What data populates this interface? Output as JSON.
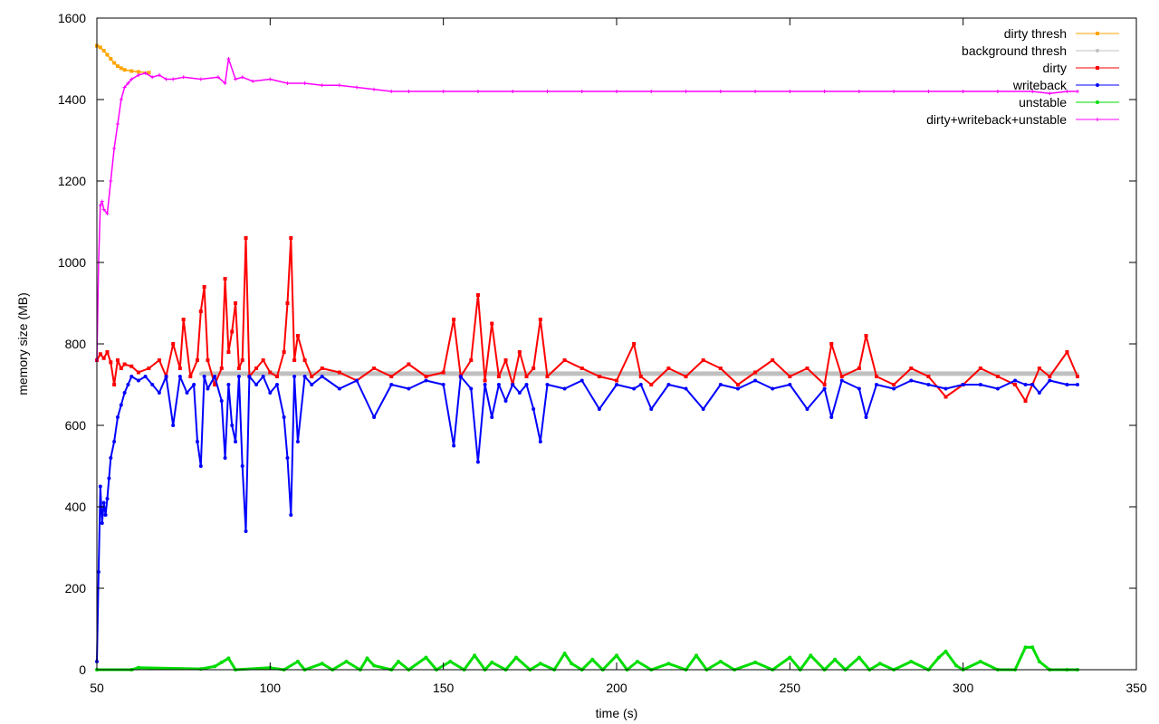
{
  "chart_data": {
    "type": "line",
    "title": "",
    "xlabel": "time (s)",
    "ylabel": "memory size (MB)",
    "xlim": [
      50,
      350
    ],
    "ylim": [
      0,
      1600
    ],
    "xticks": [
      "50",
      "100",
      "150",
      "200",
      "250",
      "300",
      "350"
    ],
    "yticks": [
      "0",
      "200",
      "400",
      "600",
      "800",
      "1000",
      "1200",
      "1400",
      "1600"
    ],
    "grid": false,
    "legend_position": "top-right",
    "series": [
      {
        "name": "dirty thresh",
        "color": "#ffa500",
        "marker": "square",
        "x": [
          50,
          51,
          52,
          53,
          54,
          55,
          56,
          57,
          58,
          60,
          62,
          65
        ],
        "y": [
          1532,
          1528,
          1520,
          1510,
          1500,
          1490,
          1482,
          1477,
          1473,
          1470,
          1468,
          1466
        ]
      },
      {
        "name": "background thresh",
        "color": "#c0c0c0",
        "marker": "dot",
        "x": [
          80,
          95,
          110,
          140,
          200,
          260,
          333
        ],
        "y": [
          727,
          727,
          727,
          727,
          727,
          727,
          727
        ]
      },
      {
        "name": "dirty",
        "color": "#ff0000",
        "marker": "square",
        "x": [
          50,
          51,
          52,
          53,
          54,
          55,
          56,
          57,
          58,
          60,
          62,
          65,
          68,
          70,
          72,
          74,
          75,
          77,
          79,
          80,
          81,
          82,
          84,
          86,
          87,
          88,
          89,
          90,
          91,
          92,
          93,
          94,
          96,
          98,
          100,
          102,
          104,
          105,
          106,
          107,
          108,
          110,
          112,
          115,
          120,
          125,
          130,
          135,
          140,
          145,
          150,
          153,
          155,
          158,
          160,
          162,
          164,
          166,
          168,
          170,
          172,
          174,
          176,
          178,
          180,
          185,
          190,
          195,
          200,
          205,
          207,
          210,
          215,
          220,
          225,
          230,
          235,
          240,
          245,
          250,
          255,
          260,
          262,
          265,
          270,
          272,
          275,
          280,
          285,
          290,
          295,
          300,
          305,
          310,
          315,
          318,
          320,
          322,
          325,
          330,
          333
        ],
        "y": [
          760,
          775,
          765,
          780,
          755,
          700,
          760,
          740,
          750,
          745,
          730,
          740,
          760,
          720,
          800,
          740,
          860,
          720,
          760,
          880,
          940,
          760,
          700,
          740,
          960,
          780,
          830,
          900,
          740,
          760,
          1060,
          720,
          740,
          760,
          730,
          720,
          780,
          900,
          1060,
          760,
          820,
          760,
          720,
          740,
          730,
          710,
          740,
          720,
          750,
          720,
          730,
          860,
          720,
          760,
          920,
          710,
          850,
          720,
          760,
          700,
          780,
          720,
          740,
          860,
          720,
          760,
          740,
          720,
          710,
          800,
          720,
          700,
          740,
          720,
          760,
          740,
          700,
          730,
          760,
          720,
          740,
          700,
          800,
          720,
          740,
          820,
          720,
          700,
          740,
          720,
          670,
          700,
          740,
          720,
          700,
          660,
          700,
          740,
          720,
          780,
          720
        ]
      },
      {
        "name": "writeback",
        "color": "#0000ff",
        "marker": "circle",
        "x": [
          50,
          50.5,
          51,
          51.5,
          52,
          52.5,
          53,
          53.5,
          54,
          55,
          56,
          57,
          58,
          59,
          60,
          62,
          64,
          66,
          68,
          70,
          72,
          74,
          76,
          78,
          79,
          80,
          81,
          82,
          84,
          86,
          87,
          88,
          89,
          90,
          91,
          92,
          93,
          94,
          96,
          98,
          100,
          102,
          104,
          105,
          106,
          107,
          108,
          110,
          112,
          115,
          120,
          125,
          130,
          135,
          140,
          145,
          150,
          153,
          155,
          158,
          160,
          162,
          164,
          166,
          168,
          170,
          172,
          174,
          176,
          178,
          180,
          185,
          190,
          195,
          200,
          205,
          207,
          210,
          215,
          220,
          225,
          230,
          235,
          240,
          245,
          250,
          255,
          260,
          262,
          265,
          270,
          272,
          275,
          280,
          285,
          290,
          295,
          300,
          305,
          310,
          315,
          318,
          320,
          322,
          325,
          330,
          333
        ],
        "y": [
          20,
          240,
          450,
          360,
          410,
          380,
          420,
          470,
          520,
          560,
          620,
          650,
          680,
          700,
          720,
          710,
          720,
          700,
          680,
          720,
          600,
          720,
          680,
          700,
          560,
          500,
          720,
          690,
          720,
          660,
          520,
          700,
          600,
          560,
          720,
          500,
          340,
          720,
          700,
          720,
          680,
          700,
          620,
          520,
          380,
          720,
          560,
          720,
          700,
          720,
          690,
          710,
          620,
          700,
          690,
          710,
          700,
          550,
          720,
          690,
          510,
          700,
          620,
          700,
          660,
          700,
          680,
          700,
          640,
          560,
          700,
          690,
          710,
          640,
          700,
          690,
          700,
          640,
          700,
          690,
          640,
          700,
          690,
          710,
          690,
          700,
          640,
          690,
          620,
          710,
          690,
          620,
          700,
          690,
          710,
          700,
          690,
          700,
          700,
          690,
          710,
          700,
          700,
          680,
          710,
          700,
          700
        ]
      },
      {
        "name": "unstable",
        "color": "#00dd00",
        "marker": "circle",
        "x": [
          50,
          60,
          62,
          80,
          84,
          86,
          88,
          90,
          100,
          104,
          108,
          110,
          115,
          118,
          122,
          126,
          128,
          130,
          135,
          137,
          140,
          145,
          148,
          152,
          156,
          159,
          162,
          164,
          168,
          171,
          175,
          178,
          182,
          185,
          187,
          190,
          193,
          196,
          200,
          203,
          206,
          210,
          215,
          220,
          223,
          226,
          230,
          234,
          240,
          245,
          250,
          253,
          256,
          260,
          263,
          266,
          270,
          273,
          276,
          280,
          285,
          290,
          293,
          295,
          298,
          300,
          305,
          310,
          315,
          318,
          320,
          322,
          325,
          330,
          333
        ],
        "y": [
          0,
          0,
          5,
          2,
          8,
          18,
          28,
          0,
          5,
          0,
          20,
          0,
          15,
          0,
          20,
          0,
          28,
          10,
          0,
          20,
          0,
          30,
          0,
          20,
          0,
          35,
          0,
          18,
          0,
          30,
          0,
          15,
          0,
          40,
          15,
          0,
          25,
          0,
          35,
          0,
          20,
          0,
          15,
          0,
          35,
          0,
          20,
          0,
          18,
          0,
          30,
          0,
          35,
          0,
          25,
          0,
          30,
          0,
          15,
          0,
          20,
          0,
          30,
          45,
          10,
          0,
          20,
          0,
          0,
          55,
          55,
          20,
          0,
          0,
          0
        ]
      },
      {
        "name": "dirty+writeback+unstable",
        "color": "#ff00ff",
        "marker": "plus",
        "x": [
          50,
          50.5,
          51,
          51.5,
          52,
          53,
          54,
          55,
          56,
          57,
          58,
          59,
          60,
          62,
          64,
          66,
          68,
          70,
          72,
          75,
          80,
          85,
          87,
          88,
          90,
          92,
          95,
          100,
          105,
          110,
          115,
          120,
          125,
          130,
          135,
          140,
          150,
          160,
          170,
          180,
          190,
          200,
          210,
          220,
          230,
          240,
          250,
          260,
          270,
          280,
          290,
          300,
          310,
          320,
          325,
          330,
          333
        ],
        "y": [
          760,
          1000,
          1140,
          1150,
          1130,
          1120,
          1200,
          1280,
          1340,
          1400,
          1430,
          1440,
          1450,
          1460,
          1465,
          1455,
          1460,
          1450,
          1450,
          1455,
          1450,
          1455,
          1440,
          1500,
          1450,
          1455,
          1445,
          1450,
          1440,
          1440,
          1435,
          1435,
          1430,
          1425,
          1420,
          1420,
          1420,
          1420,
          1420,
          1420,
          1420,
          1420,
          1420,
          1420,
          1420,
          1420,
          1420,
          1420,
          1420,
          1420,
          1420,
          1420,
          1420,
          1420,
          1415,
          1420,
          1420
        ]
      }
    ]
  }
}
